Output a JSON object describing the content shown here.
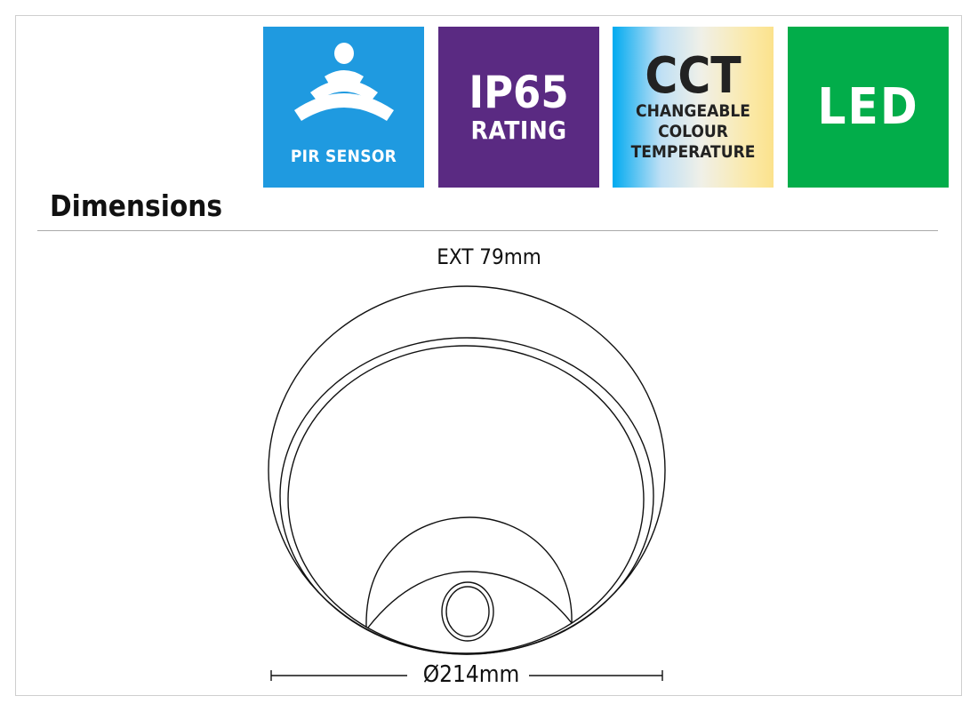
{
  "badges": {
    "pir": {
      "label": "PIR SENSOR",
      "icon": "motion-sensor-waves-icon",
      "color": "#1f9ae0"
    },
    "ip65": {
      "title": "IP65",
      "subtitle": "RATING",
      "color": "#5a2a82"
    },
    "cct": {
      "title": "CCT",
      "line1": "CHANGEABLE",
      "line2": "COLOUR",
      "line3": "TEMPERATURE"
    },
    "led": {
      "title": "LED",
      "color": "#02ad4a"
    }
  },
  "section_title": "Dimensions",
  "drawing": {
    "depth_label": "EXT 79mm",
    "diameter_label": "Ø214mm"
  }
}
